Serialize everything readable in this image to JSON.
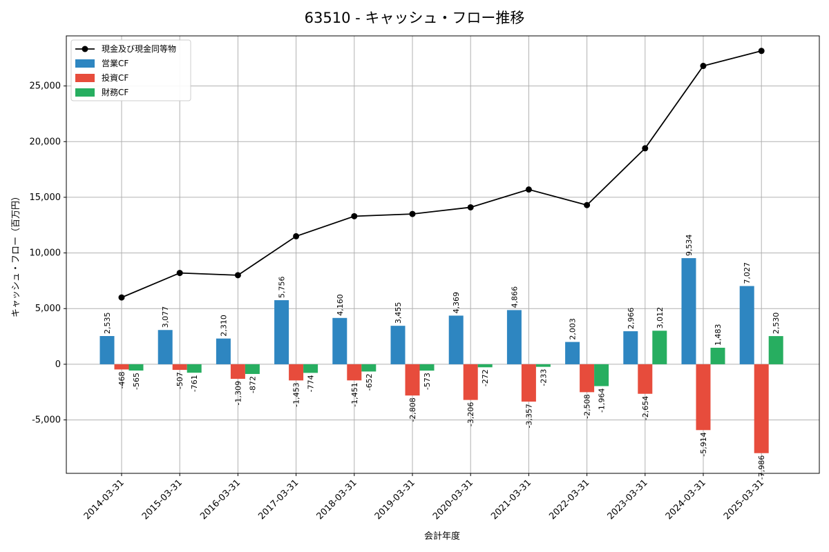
{
  "chart_data": {
    "type": "bar",
    "title": "63510 - キャッシュ・フロー推移",
    "xlabel": "会計年度",
    "ylabel": "キャッシュ・フロー（百万円）",
    "categories": [
      "2014-03-31",
      "2015-03-31",
      "2016-03-31",
      "2017-03-31",
      "2018-03-31",
      "2019-03-31",
      "2020-03-31",
      "2021-03-31",
      "2022-03-31",
      "2023-03-31",
      "2024-03-31",
      "2025-03-31"
    ],
    "ylim": [
      -9800,
      29500
    ],
    "yticks": [
      -5000,
      0,
      5000,
      10000,
      15000,
      20000,
      25000
    ],
    "ytick_labels": [
      "-5,000",
      "0",
      "5,000",
      "10,000",
      "15,000",
      "20,000",
      "25,000"
    ],
    "grid": true,
    "legend_position": "top-left",
    "series": [
      {
        "name": "営業CF",
        "type": "bar",
        "color": "#2e86c1",
        "values": [
          2535,
          3077,
          2310,
          5756,
          4160,
          3455,
          4369,
          4866,
          2003,
          2966,
          9534,
          7027
        ],
        "labels": [
          "2,535",
          "3,077",
          "2,310",
          "5,756",
          "4,160",
          "3,455",
          "4,369",
          "4,866",
          "2,003",
          "2,966",
          "9,534",
          "7,027"
        ]
      },
      {
        "name": "投資CF",
        "type": "bar",
        "color": "#e74c3c",
        "values": [
          -468,
          -507,
          -1309,
          -1453,
          -1451,
          -2808,
          -3206,
          -3357,
          -2508,
          -2654,
          -5914,
          -7986
        ],
        "labels": [
          "-468",
          "-507",
          "-1,309",
          "-1,453",
          "-1,451",
          "-2,808",
          "-3,206",
          "-3,357",
          "-2,508",
          "-2,654",
          "-5,914",
          "-7,986"
        ]
      },
      {
        "name": "財務CF",
        "type": "bar",
        "color": "#27ae60",
        "values": [
          -565,
          -761,
          -872,
          -774,
          -652,
          -573,
          -272,
          -233,
          -1964,
          3012,
          1483,
          2530
        ],
        "labels": [
          "-565",
          "-761",
          "-872",
          "-774",
          "-652",
          "-573",
          "-272",
          "-233",
          "-1,964",
          "3,012",
          "1,483",
          "2,530"
        ]
      },
      {
        "name": "現金及び現金同等物",
        "type": "line",
        "color": "#000000",
        "values": [
          6000,
          8200,
          8000,
          11500,
          13300,
          13500,
          14100,
          15700,
          14300,
          19400,
          26800,
          28150
        ]
      }
    ]
  }
}
